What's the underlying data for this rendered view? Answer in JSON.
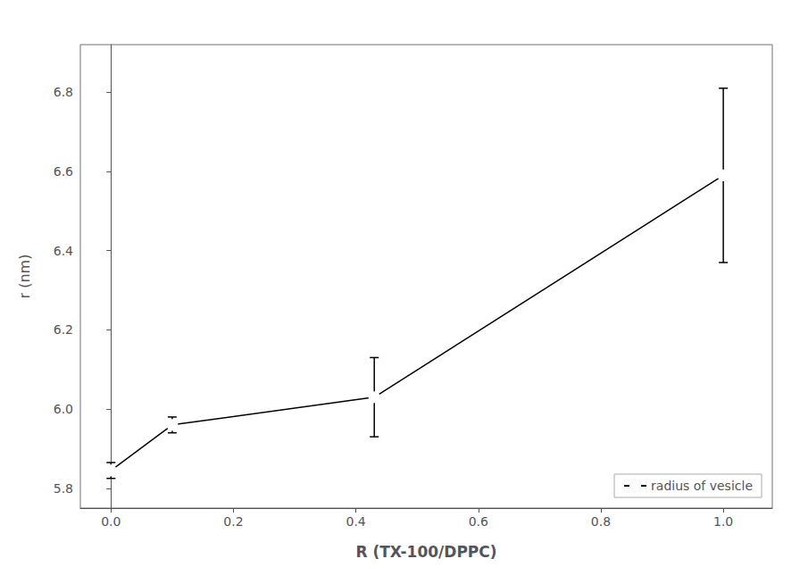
{
  "chart_data": {
    "type": "line",
    "x": [
      0.0,
      0.1,
      0.43,
      1.0
    ],
    "series": [
      {
        "name": "radius of vesicle",
        "color": "black",
        "marker": "circle",
        "values": [
          5.845,
          5.96,
          6.03,
          6.59
        ],
        "errors": [
          0.02,
          0.02,
          0.1,
          0.22
        ]
      }
    ],
    "xlabel": "R (TX-100/DPPC)",
    "ylabel": "r (nm)",
    "xlim": [
      -0.05,
      1.08
    ],
    "ylim": [
      5.75,
      6.92
    ],
    "xticks": [
      {
        "value": 0.0,
        "label": "0.0"
      },
      0.2,
      0.4,
      0.6,
      0.8,
      {
        "value": 1.0,
        "label": "1.0"
      }
    ],
    "yticks": [
      5.8,
      {
        "value": 6.0,
        "label": "6.0"
      },
      6.2,
      6.4,
      6.6,
      6.8
    ],
    "grid": false,
    "legend": "lower right"
  }
}
